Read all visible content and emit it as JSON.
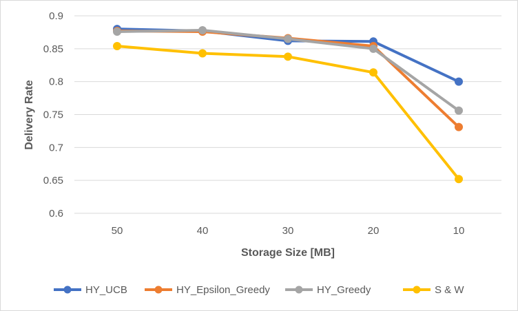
{
  "chart_data": {
    "type": "line",
    "title": "",
    "xlabel": "Storage Size [MB]",
    "ylabel": "Delivery Rate",
    "categories": [
      "50",
      "40",
      "30",
      "20",
      "10"
    ],
    "ylim": [
      0.6,
      0.9
    ],
    "yticks": [
      "0.6",
      "0.65",
      "0.7",
      "0.75",
      "0.8",
      "0.85",
      "0.9"
    ],
    "grid": true,
    "legend_position": "bottom",
    "series": [
      {
        "name": "HY_UCB",
        "color": "#4472C4",
        "values": [
          0.88,
          0.877,
          0.862,
          0.861,
          0.8
        ]
      },
      {
        "name": "HY_Epsilon_Greedy",
        "color": "#ED7D31",
        "values": [
          0.877,
          0.876,
          0.866,
          0.854,
          0.731
        ]
      },
      {
        "name": "HY_Greedy",
        "color": "#A5A5A5",
        "values": [
          0.876,
          0.878,
          0.865,
          0.85,
          0.756
        ]
      },
      {
        "name": "S & W",
        "color": "#FFC000",
        "values": [
          0.854,
          0.843,
          0.838,
          0.814,
          0.652
        ]
      }
    ]
  }
}
